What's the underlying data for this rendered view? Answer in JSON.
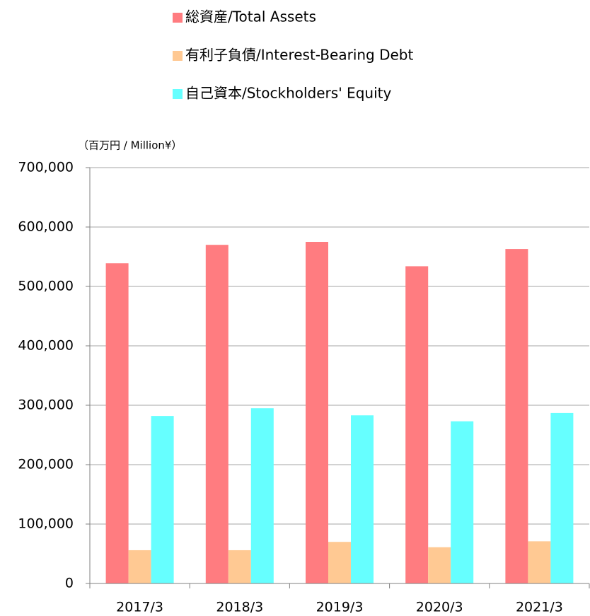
{
  "chart_data": {
    "type": "bar",
    "y_axis_label": "（百万円 / Million¥）",
    "categories": [
      "2017/3",
      "2018/3",
      "2019/3",
      "2020/3",
      "2021/3"
    ],
    "series": [
      {
        "name": "総資産/Total Assets",
        "color": "#ff7c80",
        "values": [
          539000,
          570000,
          575000,
          534000,
          563000
        ]
      },
      {
        "name": "有利子負債/Interest-Bearing Debt",
        "color": "#ffc993",
        "values": [
          56000,
          56000,
          70000,
          61000,
          71000
        ]
      },
      {
        "name": "自己資本/Stockholders' Equity",
        "color": "#66ffff",
        "values": [
          282000,
          295000,
          283000,
          273000,
          287000
        ]
      }
    ],
    "ylim": [
      0,
      700000
    ],
    "yticks": [
      0,
      {
        "value": 100000,
        "label": "100,000"
      },
      {
        "value": 200000,
        "label": "200,000"
      },
      {
        "value": 300000,
        "label": "300,000"
      },
      {
        "value": 400000,
        "label": "400,000"
      },
      {
        "value": 500000,
        "label": "500,000"
      },
      {
        "value": 600000,
        "label": "600,000"
      },
      {
        "value": 700000,
        "label": "700,000"
      }
    ],
    "grid": true,
    "legend": "top"
  }
}
